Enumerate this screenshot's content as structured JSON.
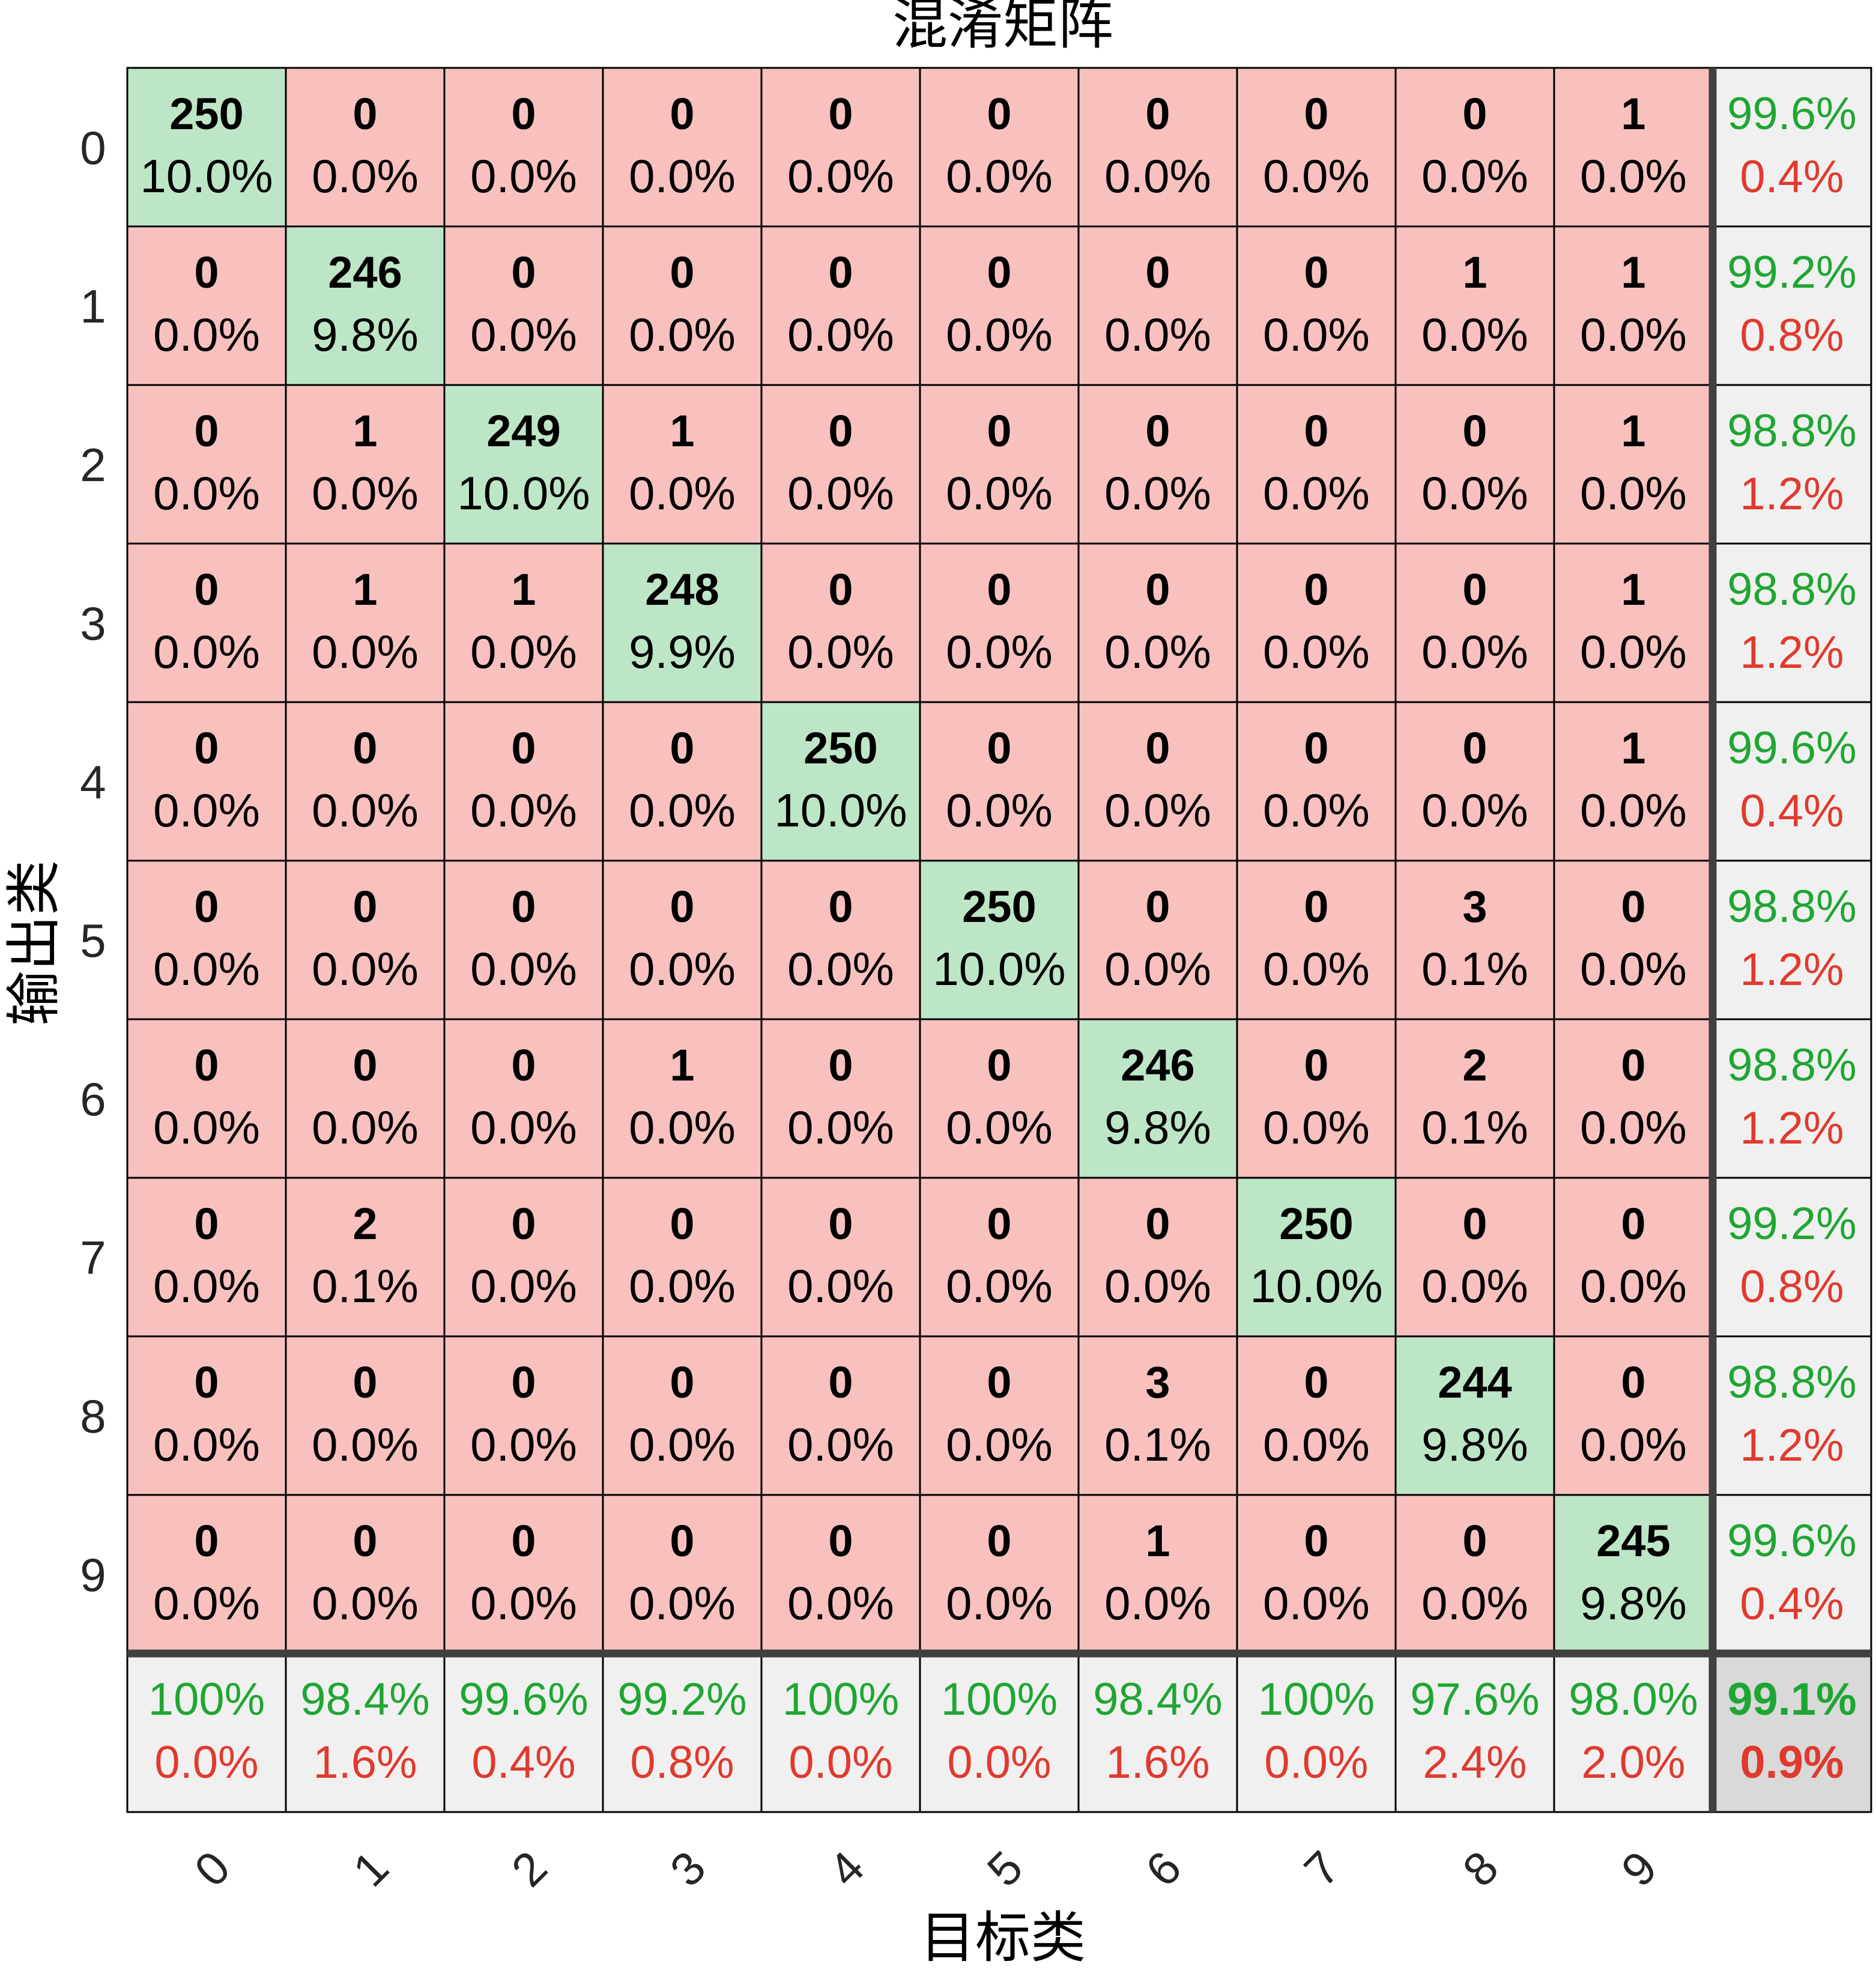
{
  "chart_data": {
    "type": "heatmap",
    "title": "混淆矩阵",
    "xlabel": "目标类",
    "ylabel": "输出类",
    "x_tick_labels": [
      "0",
      "1",
      "2",
      "3",
      "4",
      "5",
      "6",
      "7",
      "8",
      "9"
    ],
    "y_tick_labels": [
      "0",
      "1",
      "2",
      "3",
      "4",
      "5",
      "6",
      "7",
      "8",
      "9"
    ],
    "counts": [
      [
        250,
        0,
        0,
        0,
        0,
        0,
        0,
        0,
        0,
        1
      ],
      [
        0,
        246,
        0,
        0,
        0,
        0,
        0,
        0,
        1,
        1
      ],
      [
        0,
        1,
        249,
        1,
        0,
        0,
        0,
        0,
        0,
        1
      ],
      [
        0,
        1,
        1,
        248,
        0,
        0,
        0,
        0,
        0,
        1
      ],
      [
        0,
        0,
        0,
        0,
        250,
        0,
        0,
        0,
        0,
        1
      ],
      [
        0,
        0,
        0,
        0,
        0,
        250,
        0,
        0,
        3,
        0
      ],
      [
        0,
        0,
        0,
        1,
        0,
        0,
        246,
        0,
        2,
        0
      ],
      [
        0,
        2,
        0,
        0,
        0,
        0,
        0,
        250,
        0,
        0
      ],
      [
        0,
        0,
        0,
        0,
        0,
        0,
        3,
        0,
        244,
        0
      ],
      [
        0,
        0,
        0,
        0,
        0,
        0,
        1,
        0,
        0,
        245
      ]
    ],
    "percentages": [
      [
        "10.0%",
        "0.0%",
        "0.0%",
        "0.0%",
        "0.0%",
        "0.0%",
        "0.0%",
        "0.0%",
        "0.0%",
        "0.0%"
      ],
      [
        "0.0%",
        "9.8%",
        "0.0%",
        "0.0%",
        "0.0%",
        "0.0%",
        "0.0%",
        "0.0%",
        "0.0%",
        "0.0%"
      ],
      [
        "0.0%",
        "0.0%",
        "10.0%",
        "0.0%",
        "0.0%",
        "0.0%",
        "0.0%",
        "0.0%",
        "0.0%",
        "0.0%"
      ],
      [
        "0.0%",
        "0.0%",
        "0.0%",
        "9.9%",
        "0.0%",
        "0.0%",
        "0.0%",
        "0.0%",
        "0.0%",
        "0.0%"
      ],
      [
        "0.0%",
        "0.0%",
        "0.0%",
        "0.0%",
        "10.0%",
        "0.0%",
        "0.0%",
        "0.0%",
        "0.0%",
        "0.0%"
      ],
      [
        "0.0%",
        "0.0%",
        "0.0%",
        "0.0%",
        "0.0%",
        "10.0%",
        "0.0%",
        "0.0%",
        "0.1%",
        "0.0%"
      ],
      [
        "0.0%",
        "0.0%",
        "0.0%",
        "0.0%",
        "0.0%",
        "0.0%",
        "9.8%",
        "0.0%",
        "0.1%",
        "0.0%"
      ],
      [
        "0.0%",
        "0.1%",
        "0.0%",
        "0.0%",
        "0.0%",
        "0.0%",
        "0.0%",
        "10.0%",
        "0.0%",
        "0.0%"
      ],
      [
        "0.0%",
        "0.0%",
        "0.0%",
        "0.0%",
        "0.0%",
        "0.0%",
        "0.1%",
        "0.0%",
        "9.8%",
        "0.0%"
      ],
      [
        "0.0%",
        "0.0%",
        "0.0%",
        "0.0%",
        "0.0%",
        "0.0%",
        "0.0%",
        "0.0%",
        "0.0%",
        "9.8%"
      ]
    ],
    "row_summary": [
      {
        "correct": "99.6%",
        "incorrect": "0.4%"
      },
      {
        "correct": "99.2%",
        "incorrect": "0.8%"
      },
      {
        "correct": "98.8%",
        "incorrect": "1.2%"
      },
      {
        "correct": "98.8%",
        "incorrect": "1.2%"
      },
      {
        "correct": "99.6%",
        "incorrect": "0.4%"
      },
      {
        "correct": "98.8%",
        "incorrect": "1.2%"
      },
      {
        "correct": "98.8%",
        "incorrect": "1.2%"
      },
      {
        "correct": "99.2%",
        "incorrect": "0.8%"
      },
      {
        "correct": "98.8%",
        "incorrect": "1.2%"
      },
      {
        "correct": "99.6%",
        "incorrect": "0.4%"
      }
    ],
    "column_summary": [
      {
        "correct": "100%",
        "incorrect": "0.0%"
      },
      {
        "correct": "98.4%",
        "incorrect": "1.6%"
      },
      {
        "correct": "99.6%",
        "incorrect": "0.4%"
      },
      {
        "correct": "99.2%",
        "incorrect": "0.8%"
      },
      {
        "correct": "100%",
        "incorrect": "0.0%"
      },
      {
        "correct": "100%",
        "incorrect": "0.0%"
      },
      {
        "correct": "98.4%",
        "incorrect": "1.6%"
      },
      {
        "correct": "100%",
        "incorrect": "0.0%"
      },
      {
        "correct": "97.6%",
        "incorrect": "2.4%"
      },
      {
        "correct": "98.0%",
        "incorrect": "2.0%"
      }
    ],
    "overall": {
      "correct": "99.1%",
      "incorrect": "0.9%"
    }
  },
  "colors": {
    "diagonal": "#bde6c6",
    "off_diagonal": "#f8c1be",
    "summary": "#f0f0f0",
    "overall": "#d9d9d9",
    "good_text": "#1fa632",
    "bad_text": "#e03a2e",
    "grid": "#000000",
    "separator": "#404040"
  }
}
